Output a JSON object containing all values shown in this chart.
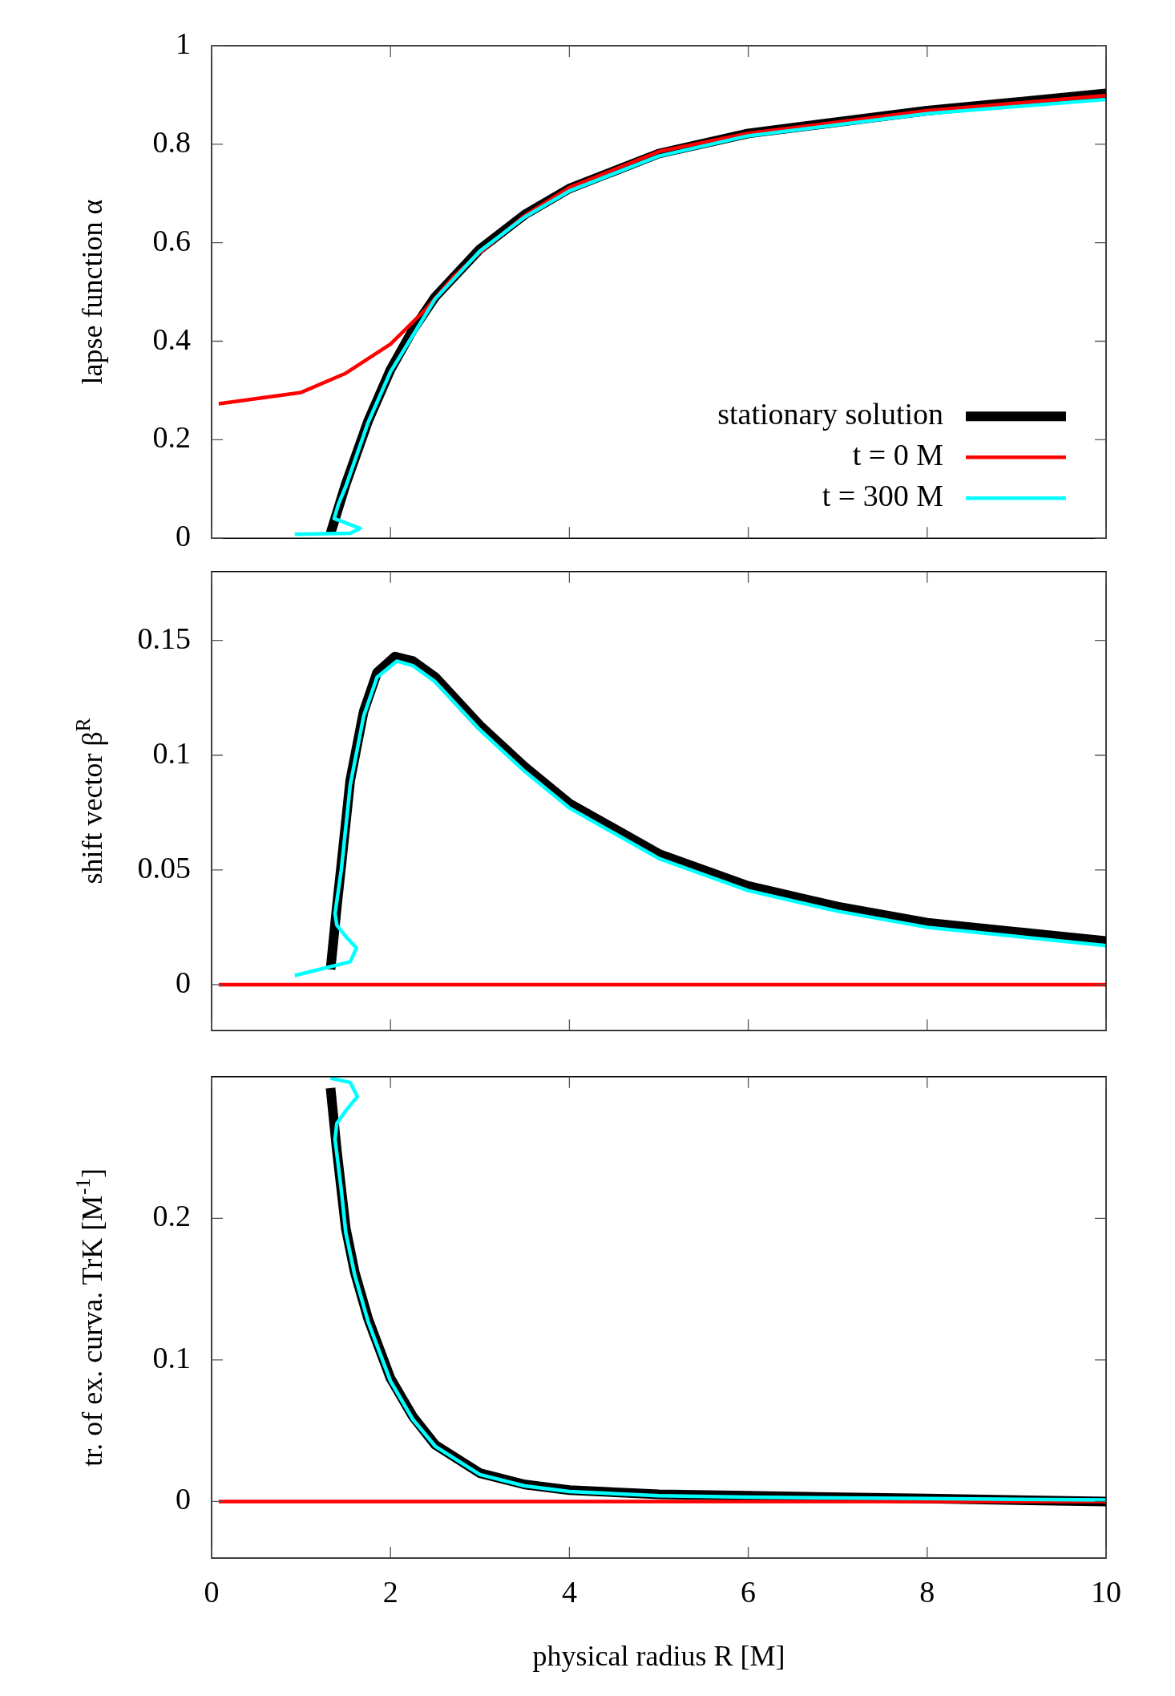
{
  "chart_data": [
    {
      "type": "line",
      "ylabel": "lapse function α",
      "xlim": [
        0,
        10
      ],
      "xticks": [
        0,
        2,
        4,
        6,
        8,
        10
      ],
      "ylim": [
        0,
        1
      ],
      "yticks": [
        0,
        0.2,
        0.4,
        0.6,
        0.8,
        1
      ],
      "tick_labels": "y",
      "grid": false,
      "legend": "bottom right",
      "marker": "none",
      "line_style": "solid",
      "series": [
        {
          "name": "stationary solution",
          "color": "#000000",
          "x": [
            1.33,
            1.5,
            1.75,
            2,
            2.25,
            2.5,
            3,
            3.5,
            4,
            5,
            6,
            8,
            10
          ],
          "values": [
            0.01,
            0.11,
            0.238,
            0.342,
            0.423,
            0.49,
            0.587,
            0.657,
            0.71,
            0.781,
            0.822,
            0.868,
            0.903
          ]
        },
        {
          "name": "t = 0 M",
          "color": "#ff0000",
          "x": [
            0.08,
            1,
            1.5,
            2,
            2.4,
            2.7,
            3,
            3.5,
            4,
            5,
            6,
            8,
            10
          ],
          "values": [
            0.273,
            0.296,
            0.335,
            0.394,
            0.466,
            0.53,
            0.58,
            0.655,
            0.712,
            0.785,
            0.822,
            0.868,
            0.899
          ]
        },
        {
          "name": "t = 300 M",
          "color": "#00ffff",
          "x": [
            0.93,
            1.55,
            1.66,
            1.37,
            1.42,
            1.5,
            1.75,
            2,
            2.5,
            3,
            3.5,
            4,
            5,
            6,
            8,
            10
          ],
          "values": [
            0.008,
            0.01,
            0.02,
            0.04,
            0.07,
            0.105,
            0.235,
            0.338,
            0.486,
            0.583,
            0.652,
            0.705,
            0.776,
            0.817,
            0.862,
            0.891
          ]
        }
      ]
    },
    {
      "type": "line",
      "ylabel": "shift vector β$^{R}$",
      "xlim": [
        0,
        10
      ],
      "xticks": [
        0,
        2,
        4,
        6,
        8,
        10
      ],
      "ylim": [
        -0.02,
        0.18
      ],
      "yticks": [
        0,
        0.05,
        0.1,
        0.15
      ],
      "tick_labels": "y",
      "grid": false,
      "legend": false,
      "marker": "none",
      "line_style": "solid",
      "series": [
        {
          "color": "#000000",
          "x": [
            1.33,
            1.4,
            1.45,
            1.55,
            1.7,
            1.85,
            2.05,
            2.25,
            2.5,
            3,
            3.5,
            4,
            5,
            6,
            7,
            8,
            9,
            10
          ],
          "values": [
            0.0067,
            0.034,
            0.052,
            0.089,
            0.119,
            0.136,
            0.143,
            0.141,
            0.134,
            0.113,
            0.095,
            0.079,
            0.057,
            0.043,
            0.034,
            0.027,
            0.023,
            0.019
          ]
        },
        {
          "color": "#ff0000",
          "x": [
            0.08,
            10
          ],
          "values": [
            0,
            0
          ]
        },
        {
          "color": "#00ffff",
          "x": [
            0.93,
            1.55,
            1.62,
            1.5,
            1.4,
            1.38,
            1.45,
            1.55,
            1.7,
            1.85,
            2.07,
            2.25,
            2.5,
            3,
            3.5,
            4,
            5,
            6,
            7,
            8,
            9,
            10
          ],
          "values": [
            0.004,
            0.01,
            0.016,
            0.021,
            0.026,
            0.031,
            0.05,
            0.087,
            0.117,
            0.134,
            0.141,
            0.139,
            0.132,
            0.111,
            0.093,
            0.077,
            0.055,
            0.041,
            0.032,
            0.025,
            0.021,
            0.017
          ]
        }
      ]
    },
    {
      "type": "line",
      "xlabel": "physical radius R [M]",
      "ylabel": "tr. of ex. curva. TrK [M$^{-1}$]",
      "xlim": [
        0,
        10
      ],
      "xticks": [
        0,
        2,
        4,
        6,
        8,
        10
      ],
      "ylim": [
        -0.04,
        0.3
      ],
      "yticks": [
        0,
        0.1,
        0.2
      ],
      "grid": false,
      "legend": false,
      "marker": "none",
      "line_style": "solid",
      "series": [
        {
          "color": "#000000",
          "x": [
            1.33,
            1.4,
            1.5,
            1.6,
            1.75,
            2,
            2.25,
            2.5,
            3,
            3.5,
            4,
            5,
            6,
            8,
            10
          ],
          "values": [
            0.292,
            0.248,
            0.193,
            0.162,
            0.129,
            0.087,
            0.06,
            0.04,
            0.02,
            0.012,
            0.008,
            0.005,
            0.004,
            0.002,
            0
          ]
        },
        {
          "color": "#ff0000",
          "x": [
            0.08,
            10
          ],
          "values": [
            0,
            0
          ]
        },
        {
          "color": "#00ffff",
          "x": [
            1.33,
            1.55,
            1.63,
            1.5,
            1.4,
            1.38,
            1.45,
            1.5,
            1.6,
            1.75,
            2,
            2.25,
            2.5,
            3,
            3.5,
            4,
            5,
            6,
            8,
            10
          ],
          "values": [
            0.299,
            0.296,
            0.286,
            0.276,
            0.267,
            0.256,
            0.22,
            0.19,
            0.16,
            0.127,
            0.085,
            0.058,
            0.039,
            0.019,
            0.011,
            0.007,
            0.004,
            0.003,
            0.002,
            0.001
          ]
        }
      ]
    }
  ]
}
